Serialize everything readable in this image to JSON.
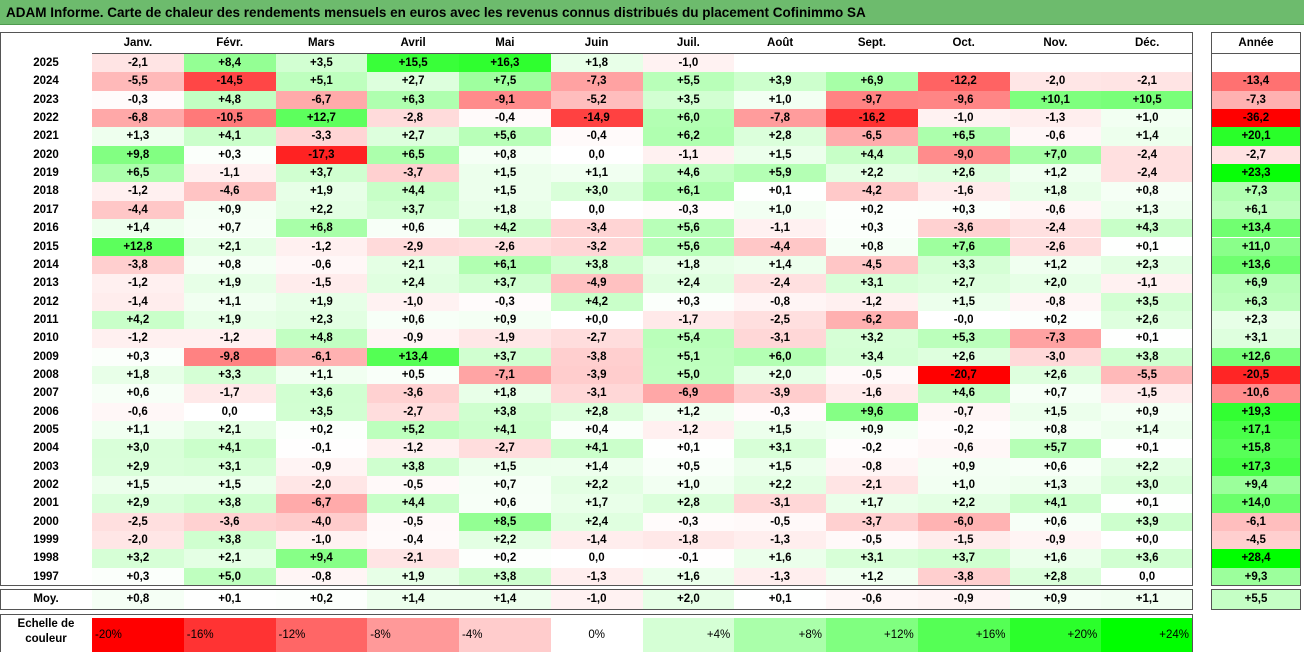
{
  "title": "ADAM Informe. Carte de chaleur des rendements mensuels en euros avec les revenus connus distribués du placement Cofinimmo SA",
  "chart_data": {
    "type": "heatmap",
    "months": [
      "Janv.",
      "Févr.",
      "Mars",
      "Avril",
      "Mai",
      "Juin",
      "Juil.",
      "Août",
      "Sept.",
      "Oct.",
      "Nov.",
      "Déc."
    ],
    "year_header": "Année",
    "rows": [
      {
        "year": "2025",
        "values": [
          "-2,1",
          "+8,4",
          "+3,5",
          "+15,5",
          "+16,3",
          "+1,8",
          "-1,0",
          null,
          null,
          null,
          null,
          null
        ],
        "annual": null
      },
      {
        "year": "2024",
        "values": [
          "-5,5",
          "-14,5",
          "+5,1",
          "+2,7",
          "+7,5",
          "-7,3",
          "+5,5",
          "+3,9",
          "+6,9",
          "-12,2",
          "-2,0",
          "-2,1"
        ],
        "annual": "-13,4"
      },
      {
        "year": "2023",
        "values": [
          "-0,3",
          "+4,8",
          "-6,7",
          "+6,3",
          "-9,1",
          "-5,2",
          "+3,5",
          "+1,0",
          "-9,7",
          "-9,6",
          "+10,1",
          "+10,5"
        ],
        "annual": "-7,3"
      },
      {
        "year": "2022",
        "values": [
          "-6,8",
          "-10,5",
          "+12,7",
          "-2,8",
          "-0,4",
          "-14,9",
          "+6,0",
          "-7,8",
          "-16,2",
          "-1,0",
          "-1,3",
          "+1,0"
        ],
        "annual": "-36,2"
      },
      {
        "year": "2021",
        "values": [
          "+1,3",
          "+4,1",
          "-3,3",
          "+2,7",
          "+5,6",
          "-0,4",
          "+6,2",
          "+2,8",
          "-6,5",
          "+6,5",
          "-0,6",
          "+1,4"
        ],
        "annual": "+20,1"
      },
      {
        "year": "2020",
        "values": [
          "+9,8",
          "+0,3",
          "-17,3",
          "+6,5",
          "+0,8",
          "0,0",
          "-1,1",
          "+1,5",
          "+4,4",
          "-9,0",
          "+7,0",
          "-2,4"
        ],
        "annual": "-2,7"
      },
      {
        "year": "2019",
        "values": [
          "+6,5",
          "-1,1",
          "+3,7",
          "-3,7",
          "+1,5",
          "+1,1",
          "+4,6",
          "+5,9",
          "+2,2",
          "+2,6",
          "+1,2",
          "-2,4"
        ],
        "annual": "+23,3"
      },
      {
        "year": "2018",
        "values": [
          "-1,2",
          "-4,6",
          "+1,9",
          "+4,4",
          "+1,5",
          "+3,0",
          "+6,1",
          "+0,1",
          "-4,2",
          "-1,6",
          "+1,8",
          "+0,8"
        ],
        "annual": "+7,3"
      },
      {
        "year": "2017",
        "values": [
          "-4,4",
          "+0,9",
          "+2,2",
          "+3,7",
          "+1,8",
          "0,0",
          "-0,3",
          "+1,0",
          "+0,2",
          "+0,3",
          "-0,6",
          "+1,3"
        ],
        "annual": "+6,1"
      },
      {
        "year": "2016",
        "values": [
          "+1,4",
          "+0,7",
          "+6,8",
          "+0,6",
          "+4,2",
          "-3,4",
          "+5,6",
          "-1,1",
          "+0,3",
          "-3,6",
          "-2,4",
          "+4,3"
        ],
        "annual": "+13,4"
      },
      {
        "year": "2015",
        "values": [
          "+12,8",
          "+2,1",
          "-1,2",
          "-2,9",
          "-2,6",
          "-3,2",
          "+5,6",
          "-4,4",
          "+0,8",
          "+7,6",
          "-2,6",
          "+0,1"
        ],
        "annual": "+11,0"
      },
      {
        "year": "2014",
        "values": [
          "-3,8",
          "+0,8",
          "-0,6",
          "+2,1",
          "+6,1",
          "+3,8",
          "+1,8",
          "+1,4",
          "-4,5",
          "+3,3",
          "+1,2",
          "+2,3"
        ],
        "annual": "+13,6"
      },
      {
        "year": "2013",
        "values": [
          "-1,2",
          "+1,9",
          "-1,5",
          "+2,4",
          "+3,7",
          "-4,9",
          "+2,4",
          "-2,4",
          "+3,1",
          "+2,7",
          "+2,0",
          "-1,1"
        ],
        "annual": "+6,9"
      },
      {
        "year": "2012",
        "values": [
          "-1,4",
          "+1,1",
          "+1,9",
          "-1,0",
          "-0,3",
          "+4,2",
          "+0,3",
          "-0,8",
          "-1,2",
          "+1,5",
          "-0,8",
          "+3,5"
        ],
        "annual": "+6,3"
      },
      {
        "year": "2011",
        "values": [
          "+4,2",
          "+1,9",
          "+2,3",
          "+0,6",
          "+0,9",
          "+0,0",
          "-1,7",
          "-2,5",
          "-6,2",
          "-0,0",
          "+0,2",
          "+2,6"
        ],
        "annual": "+2,3"
      },
      {
        "year": "2010",
        "values": [
          "-1,2",
          "-1,2",
          "+4,8",
          "-0,9",
          "-1,9",
          "-2,7",
          "+5,4",
          "-3,1",
          "+3,2",
          "+5,3",
          "-7,3",
          "+0,1"
        ],
        "annual": "+3,1"
      },
      {
        "year": "2009",
        "values": [
          "+0,3",
          "-9,8",
          "-6,1",
          "+13,4",
          "+3,7",
          "-3,8",
          "+5,1",
          "+6,0",
          "+3,4",
          "+2,6",
          "-3,0",
          "+3,8"
        ],
        "annual": "+12,6"
      },
      {
        "year": "2008",
        "values": [
          "+1,8",
          "+3,3",
          "+1,1",
          "+0,5",
          "-7,1",
          "-3,9",
          "+5,0",
          "+2,0",
          "-0,5",
          "-20,7",
          "+2,6",
          "-5,5"
        ],
        "annual": "-20,5"
      },
      {
        "year": "2007",
        "values": [
          "+0,6",
          "-1,7",
          "+3,6",
          "-3,6",
          "+1,8",
          "-3,1",
          "-6,9",
          "-3,9",
          "-1,6",
          "+4,6",
          "+0,7",
          "-1,5"
        ],
        "annual": "-10,6"
      },
      {
        "year": "2006",
        "values": [
          "-0,6",
          "0,0",
          "+3,5",
          "-2,7",
          "+3,8",
          "+2,8",
          "+1,2",
          "-0,3",
          "+9,6",
          "-0,7",
          "+1,5",
          "+0,9"
        ],
        "annual": "+19,3"
      },
      {
        "year": "2005",
        "values": [
          "+1,1",
          "+2,1",
          "+0,2",
          "+5,2",
          "+4,1",
          "+0,4",
          "-1,2",
          "+1,5",
          "+0,9",
          "-0,2",
          "+0,8",
          "+1,4"
        ],
        "annual": "+17,1"
      },
      {
        "year": "2004",
        "values": [
          "+3,0",
          "+4,1",
          "-0,1",
          "-1,2",
          "-2,7",
          "+4,1",
          "+0,1",
          "+3,1",
          "-0,2",
          "-0,6",
          "+5,7",
          "+0,1"
        ],
        "annual": "+15,8"
      },
      {
        "year": "2003",
        "values": [
          "+2,9",
          "+3,1",
          "-0,9",
          "+3,8",
          "+1,5",
          "+1,4",
          "+0,5",
          "+1,5",
          "-0,8",
          "+0,9",
          "+0,6",
          "+2,2"
        ],
        "annual": "+17,3"
      },
      {
        "year": "2002",
        "values": [
          "+1,5",
          "+1,5",
          "-2,0",
          "-0,5",
          "+0,7",
          "+2,2",
          "+1,0",
          "+2,2",
          "-2,1",
          "+1,0",
          "+1,3",
          "+3,0"
        ],
        "annual": "+9,4"
      },
      {
        "year": "2001",
        "values": [
          "+2,9",
          "+3,8",
          "-6,7",
          "+4,4",
          "+0,6",
          "+1,7",
          "+2,8",
          "-3,1",
          "+1,7",
          "+2,2",
          "+4,1",
          "+0,1"
        ],
        "annual": "+14,0"
      },
      {
        "year": "2000",
        "values": [
          "-2,5",
          "-3,6",
          "-4,0",
          "-0,5",
          "+8,5",
          "+2,4",
          "-0,3",
          "-0,5",
          "-3,7",
          "-6,0",
          "+0,6",
          "+3,9"
        ],
        "annual": "-6,1"
      },
      {
        "year": "1999",
        "values": [
          "-2,0",
          "+3,8",
          "-1,0",
          "-0,4",
          "+2,2",
          "-1,4",
          "-1,8",
          "-1,3",
          "-0,5",
          "-1,5",
          "-0,9",
          "+0,0"
        ],
        "annual": "-4,5"
      },
      {
        "year": "1998",
        "values": [
          "+3,2",
          "+2,1",
          "+9,4",
          "-2,1",
          "+0,2",
          "0,0",
          "-0,1",
          "+1,6",
          "+3,1",
          "+3,7",
          "+1,6",
          "+3,6"
        ],
        "annual": "+28,4"
      },
      {
        "year": "1997",
        "values": [
          "+0,3",
          "+5,0",
          "-0,8",
          "+1,9",
          "+3,8",
          "-1,3",
          "+1,6",
          "-1,3",
          "+1,2",
          "-3,8",
          "+2,8",
          "0,0"
        ],
        "annual": "+9,3"
      }
    ],
    "average_row": {
      "label": "Moy.",
      "values": [
        "+0,8",
        "+0,1",
        "+0,2",
        "+1,4",
        "+1,4",
        "-1,0",
        "+2,0",
        "+0,1",
        "-0,6",
        "-0,9",
        "+0,9",
        "+1,1"
      ],
      "annual": "+5,5"
    },
    "scale": {
      "label": "Echelle de couleur",
      "stops": [
        "-20%",
        "-16%",
        "-12%",
        "-8%",
        "-4%",
        "0%",
        "+4%",
        "+8%",
        "+12%",
        "+16%",
        "+20%",
        "+24%"
      ],
      "stop_values": [
        -20,
        -16,
        -12,
        -8,
        -4,
        0,
        4,
        8,
        12,
        16,
        20,
        24
      ]
    },
    "colors": {
      "negative_max": "#ff0000",
      "neutral": "#ffffff",
      "positive_max": "#00ff00",
      "title_bar": "#6dbb6d"
    }
  }
}
